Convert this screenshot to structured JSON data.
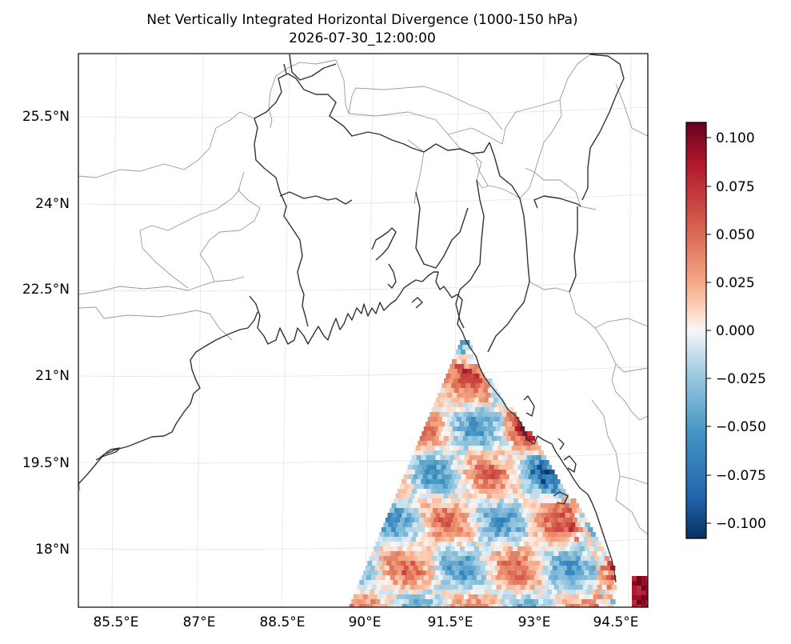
{
  "title": "Net Vertically Integrated Horizontal Divergence (1000-150 hPa)",
  "subtitle": "2026-07-30_12:00:00",
  "map": {
    "lon_labels": [
      "85.5°E",
      "87°E",
      "88.5°E",
      "90°E",
      "91.5°E",
      "93°E",
      "94.5°E"
    ],
    "lat_labels": [
      "25.5°N",
      "24°N",
      "22.5°N",
      "21°N",
      "19.5°N",
      "18°N"
    ],
    "gridlines": true
  },
  "colorbar": {
    "colormap": "RdBu_r",
    "range": [
      -0.107,
      0.107
    ],
    "tick_labels": [
      "0.100",
      "0.075",
      "0.050",
      "0.025",
      "0.000",
      "−0.025",
      "−0.050",
      "−0.075",
      "−0.100"
    ],
    "colors": {
      "max": "#67001f",
      "mid": "#f7f7f7",
      "min": "#053061"
    }
  },
  "colors": {
    "coastline": "#333333",
    "state_borders": "#999999",
    "gridline": "#e0e0e0"
  }
}
